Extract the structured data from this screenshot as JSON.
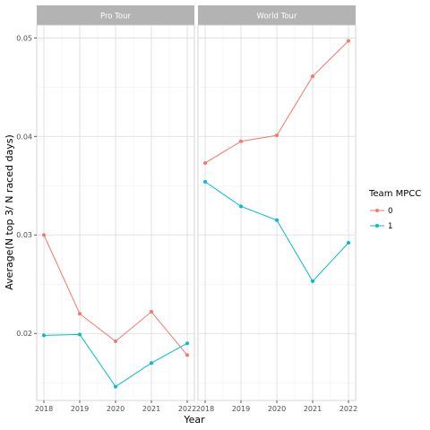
{
  "chart_data": {
    "type": "line",
    "ylabel": "Average(N top 3/ N raced days)",
    "xlabel": "Year",
    "x": [
      2018,
      2019,
      2020,
      2021,
      2022
    ],
    "x_tick_labels": [
      "2018",
      "2019",
      "2020",
      "2021",
      "2022"
    ],
    "y_ticks": [
      0.02,
      0.03,
      0.04,
      0.05
    ],
    "y_tick_labels": [
      "0.02",
      "0.03",
      "0.04",
      "0.05"
    ],
    "ylim": [
      0.0132,
      0.0513
    ],
    "xlim": [
      2017.8,
      2022.2
    ],
    "grid": true,
    "legend": {
      "title": "Team MPCC",
      "placement": "right",
      "entries": [
        {
          "label": "0",
          "color": "#F8766D"
        },
        {
          "label": "1",
          "color": "#00BFC4"
        }
      ]
    },
    "panels": [
      {
        "strip": "Pro Tour",
        "series": [
          {
            "name": "0",
            "color": "#F8766D",
            "values": [
              0.03,
              0.022,
              0.0192,
              0.0222,
              0.0178
            ]
          },
          {
            "name": "1",
            "color": "#00BFC4",
            "values": [
              0.0198,
              0.0199,
              0.0146,
              0.017,
              0.019
            ]
          }
        ]
      },
      {
        "strip": "World Tour",
        "series": [
          {
            "name": "0",
            "color": "#F8766D",
            "values": [
              0.0373,
              0.0395,
              0.0401,
              0.0461,
              0.0497
            ]
          },
          {
            "name": "1",
            "color": "#00BFC4",
            "values": [
              0.0354,
              0.0329,
              0.0315,
              0.0253,
              0.0292
            ]
          }
        ]
      }
    ]
  }
}
